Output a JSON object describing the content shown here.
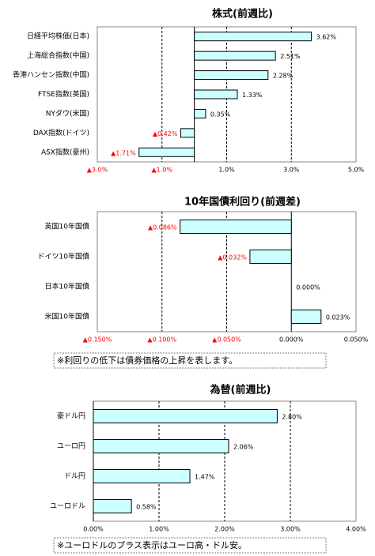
{
  "chart_data": [
    {
      "type": "bar",
      "orientation": "horizontal",
      "title": "株式(前週比)",
      "categories": [
        "日経平均株価(日本)",
        "上海総合指数(中国)",
        "香港ハンセン指数(中国)",
        "FTSE指数(英国)",
        "NYダウ(米国)",
        "DAX指数(ドイツ)",
        "ASX指数(豪州)"
      ],
      "values": [
        3.62,
        2.51,
        2.28,
        1.33,
        0.35,
        -0.42,
        -1.71
      ],
      "value_labels": [
        "3.62%",
        "2.51%",
        "2.28%",
        "1.33%",
        "0.35%",
        "▲0.42%",
        "▲1.71%"
      ],
      "color": "#ccffff",
      "negative_label_color": "#ff0000",
      "grid": true,
      "xlim": [
        -3,
        5
      ],
      "xticks": [
        {
          "value": -3,
          "label": "▲3.0%"
        },
        {
          "value": -1,
          "label": "▲1.0%"
        },
        {
          "value": 1,
          "label": "1.0%"
        },
        {
          "value": 3,
          "label": "3.0%"
        },
        {
          "value": 5,
          "label": "5.0%"
        }
      ]
    },
    {
      "type": "bar",
      "orientation": "horizontal",
      "title": "10年国債利回り(前週差)",
      "categories": [
        "英国10年国債",
        "ドイツ10年国債",
        "日本10年国債",
        "米国10年国債"
      ],
      "values": [
        -0.086,
        -0.032,
        0.0,
        0.023
      ],
      "value_labels": [
        "▲0.086%",
        "▲0.032%",
        "0.000%",
        "0.023%"
      ],
      "color": "#ccffff",
      "negative_label_color": "#ff0000",
      "grid": true,
      "xlim": [
        -0.15,
        0.05
      ],
      "xticks": [
        {
          "value": -0.15,
          "label": "▲0.150%"
        },
        {
          "value": -0.1,
          "label": "▲0.100%"
        },
        {
          "value": -0.05,
          "label": "▲0.050%"
        },
        {
          "value": 0,
          "label": "0.000%"
        },
        {
          "value": 0.05,
          "label": "0.050%"
        }
      ],
      "note": "※利回りの低下は債券価格の上昇を表します。"
    },
    {
      "type": "bar",
      "orientation": "horizontal",
      "title": "為替(前週比)",
      "categories": [
        "豪ドル円",
        "ユーロ円",
        "ドル円",
        "ユーロドル"
      ],
      "values": [
        2.8,
        2.06,
        1.47,
        0.58
      ],
      "value_labels": [
        "2.80%",
        "2.06%",
        "1.47%",
        "0.58%"
      ],
      "color": "#ccffff",
      "negative_label_color": "#ff0000",
      "grid": true,
      "xlim": [
        0,
        4
      ],
      "xticks": [
        {
          "value": 0,
          "label": "0.00%"
        },
        {
          "value": 1,
          "label": "1.00%"
        },
        {
          "value": 2,
          "label": "2.00%"
        },
        {
          "value": 3,
          "label": "3.00%"
        },
        {
          "value": 4,
          "label": "4.00%"
        }
      ],
      "note": "※ユーロドルのプラス表示はユーロ高・ドル安。"
    }
  ]
}
